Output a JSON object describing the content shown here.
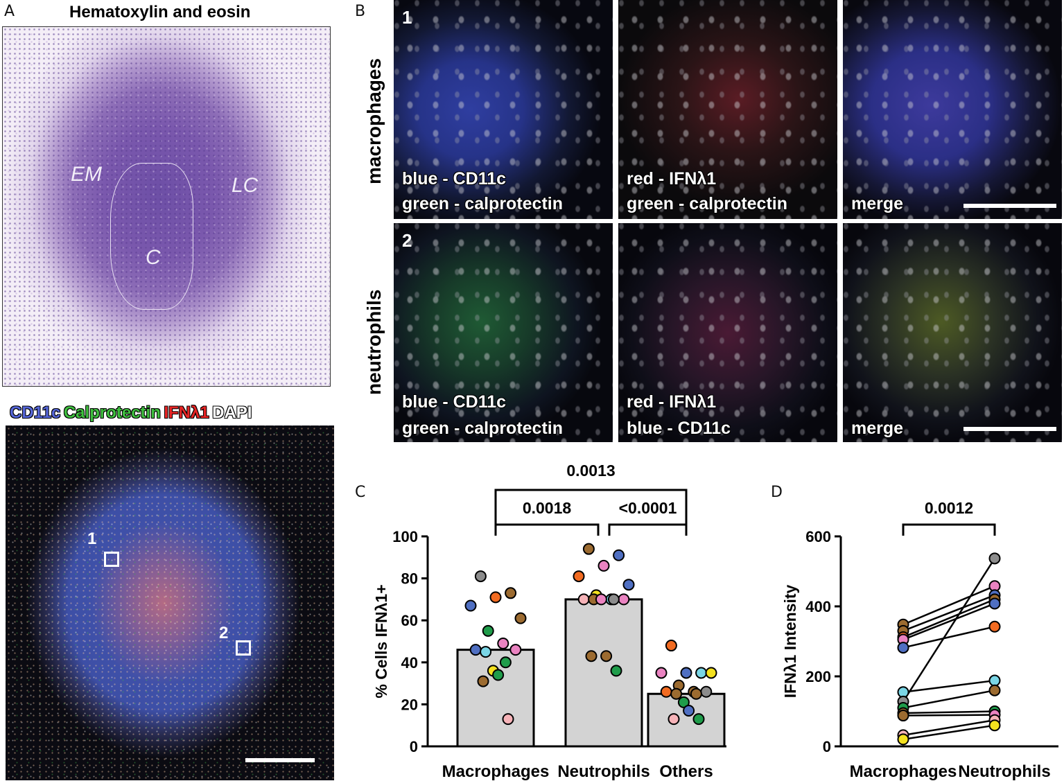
{
  "panel_letters": {
    "a": "A",
    "b": "B",
    "c": "C",
    "d": "D"
  },
  "panel_a": {
    "he_title": "Hematoxylin and eosin",
    "he_regions": {
      "em": "EM",
      "lc": "LC",
      "c": "C"
    },
    "if_legend": {
      "cd11c": "CD11c",
      "calprotectin": "Calprotectin",
      "ifnl1": "IFNλ1",
      "dapi": "DAPI"
    },
    "legend_colors": {
      "cd11c": "#5566d8",
      "calprotectin": "#3fbf3f",
      "ifnl1": "#e82525",
      "dapi": "#ffffff"
    },
    "roi_labels": [
      "1",
      "2"
    ]
  },
  "panel_b": {
    "row_labels": [
      "macrophages",
      "neutrophils"
    ],
    "tiles": [
      {
        "number": "1",
        "lines": [
          "blue - CD11c",
          "green - calprotectin"
        ]
      },
      {
        "number": "",
        "lines": [
          "red - IFNλ1",
          "green - calprotectin"
        ]
      },
      {
        "number": "",
        "lines": [
          "merge"
        ]
      },
      {
        "number": "2",
        "lines": [
          "blue - CD11c",
          "green - calprotectin"
        ]
      },
      {
        "number": "",
        "lines": [
          "red - IFNλ1",
          "blue - CD11c"
        ]
      },
      {
        "number": "",
        "lines": [
          "merge"
        ]
      }
    ]
  },
  "chart_data": [
    {
      "type": "bar",
      "panel": "C",
      "ylabel": "% Cells IFNλ1+",
      "ylim": [
        0,
        100
      ],
      "yticks": [
        0,
        20,
        40,
        60,
        80,
        100
      ],
      "categories": [
        "Macrophages",
        "Neutrophils",
        "Others"
      ],
      "values": [
        46,
        70,
        25
      ],
      "bar_color": "#d3d3d3",
      "points": [
        [
          81,
          73,
          71,
          67,
          61,
          55,
          49,
          46,
          46,
          45,
          40,
          36,
          34,
          31,
          13
        ],
        [
          94,
          91,
          86,
          81,
          77,
          72,
          70,
          70,
          70,
          70,
          70,
          70,
          43,
          43,
          36
        ],
        [
          48,
          35,
          35,
          35,
          35,
          29,
          26,
          26,
          26,
          25,
          25,
          21,
          17,
          13,
          13
        ]
      ],
      "point_colors": [
        [
          "#8c8c8c",
          "#9c6b30",
          "#f26b21",
          "#4f6fc2",
          "#9c6b30",
          "#1f9c4a",
          "#ea83c1",
          "#4f6fc2",
          "#ea83c1",
          "#7ad6e6",
          "#1f9c4a",
          "#f4e11f",
          "#1f9c4a",
          "#9c6b30",
          "#f6b3b8"
        ],
        [
          "#9c6b30",
          "#4f6fc2",
          "#ea83c1",
          "#f26b21",
          "#4f6fc2",
          "#f4e11f",
          "#7ad6e6",
          "#f6b3b8",
          "#ea83c1",
          "#9c6b30",
          "#8c8c8c",
          "#ea83c1",
          "#9c6b30",
          "#9c6b30",
          "#1f9c4a"
        ],
        [
          "#f26b21",
          "#7ad6e6",
          "#4f6fc2",
          "#ea83c1",
          "#f4e11f",
          "#9c6b30",
          "#9c6b30",
          "#f26b21",
          "#8c8c8c",
          "#9c6b30",
          "#9c6b30",
          "#1f9c4a",
          "#4f6fc2",
          "#f6b3b8",
          "#1f9c4a"
        ]
      ],
      "comparisons": [
        {
          "from": 0,
          "to": 2,
          "label": "0.0013"
        },
        {
          "from": 0,
          "to": 1,
          "label": "0.0018"
        },
        {
          "from": 1,
          "to": 2,
          "label": "<0.0001"
        }
      ]
    },
    {
      "type": "line",
      "panel": "D",
      "ylabel": "IFNλ1 Intensity",
      "ylim": [
        0,
        600
      ],
      "yticks": [
        0,
        200,
        400,
        600
      ],
      "categories": [
        "Macrophages",
        "Neutrophils"
      ],
      "pairs": [
        {
          "macrophages": 348,
          "neutrophils": 458,
          "color_mac": "#9c6b30",
          "color_neu": "#ea83c1"
        },
        {
          "macrophages": 330,
          "neutrophils": 432,
          "color_mac": "#9c6b30",
          "color_neu": "#4f6fc2"
        },
        {
          "macrophages": 312,
          "neutrophils": 420,
          "color_mac": "#f26b21",
          "color_neu": "#9c6b30"
        },
        {
          "macrophages": 305,
          "neutrophils": 408,
          "color_mac": "#ea83c1",
          "color_neu": "#4f6fc2"
        },
        {
          "macrophages": 282,
          "neutrophils": 342,
          "color_mac": "#4f6fc2",
          "color_neu": "#f26b21"
        },
        {
          "macrophages": 155,
          "neutrophils": 188,
          "color_mac": "#7ad6e6",
          "color_neu": "#7ad6e6"
        },
        {
          "macrophages": 128,
          "neutrophils": 537,
          "color_mac": "#8c8c8c",
          "color_neu": "#8c8c8c"
        },
        {
          "macrophages": 110,
          "neutrophils": 160,
          "color_mac": "#1f9c4a",
          "color_neu": "#9c6b30"
        },
        {
          "macrophages": 95,
          "neutrophils": 100,
          "color_mac": "#9c6b30",
          "color_neu": "#1f9c4a"
        },
        {
          "macrophages": 88,
          "neutrophils": 90,
          "color_mac": "#9c6b30",
          "color_neu": "#ea83c1"
        },
        {
          "macrophages": 32,
          "neutrophils": 75,
          "color_mac": "#f6b3b8",
          "color_neu": "#f6b3b8"
        },
        {
          "macrophages": 20,
          "neutrophils": 60,
          "color_mac": "#f4e11f",
          "color_neu": "#f4e11f"
        }
      ],
      "comparisons": [
        {
          "from": 0,
          "to": 1,
          "label": "0.0012"
        }
      ]
    }
  ]
}
